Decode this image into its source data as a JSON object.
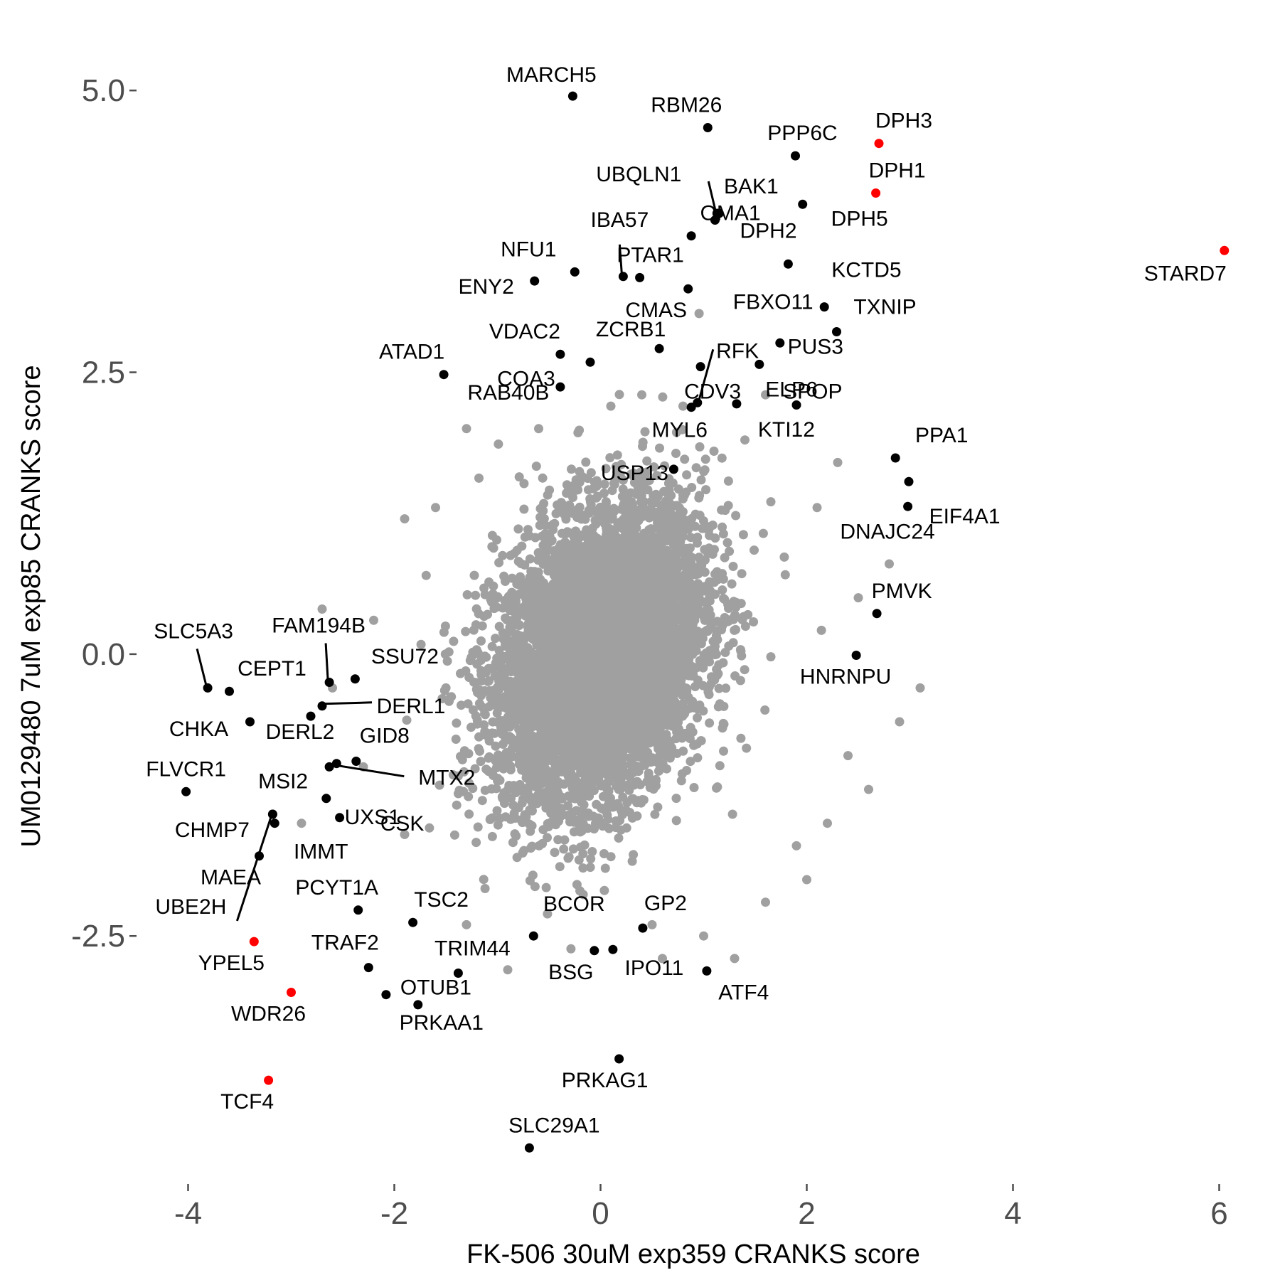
{
  "chart_data": {
    "type": "scatter",
    "xlabel": "FK-506 30uM exp359 CRANKS score",
    "ylabel": "UM0129480 7uM exp85 CRANKS score",
    "xlim": [
      -4.5,
      6.3
    ],
    "ylim": [
      -4.7,
      5.55
    ],
    "x_ticks": [
      -4,
      -2,
      0,
      2,
      4,
      6
    ],
    "x_tick_labels": [
      "-4",
      "-2",
      "0",
      "2",
      "4",
      "6"
    ],
    "y_ticks": [
      -2.5,
      0.0,
      2.5,
      5.0
    ],
    "y_tick_labels": [
      "-2.5",
      "0.0",
      "2.5",
      "5.0"
    ],
    "grid": false,
    "legend": "none",
    "colors": {
      "background_points": "#a0a0a0",
      "highlighted_points": "#000000",
      "red_points": "#ff0000",
      "ticks": "#4d4d4d"
    },
    "background_cloud": {
      "n": 6500,
      "center": [
        0.0,
        0.0
      ],
      "sd": [
        0.5,
        0.65
      ],
      "correlation": 0.28,
      "outlier_points": [
        [
          1.1,
          1.8
        ],
        [
          1.4,
          1.9
        ],
        [
          2.3,
          1.7
        ],
        [
          2.1,
          1.3
        ],
        [
          2.8,
          0.8
        ],
        [
          2.5,
          0.5
        ],
        [
          3.1,
          -0.3
        ],
        [
          2.4,
          -0.9
        ],
        [
          2.2,
          -1.5
        ],
        [
          1.9,
          -1.7
        ],
        [
          2.0,
          -2.0
        ],
        [
          1.6,
          -2.2
        ],
        [
          1.0,
          -2.5
        ],
        [
          0.5,
          -2.4
        ],
        [
          -0.9,
          -2.8
        ],
        [
          -1.3,
          -2.4
        ],
        [
          -1.9,
          -1.6
        ],
        [
          -2.3,
          -1.0
        ],
        [
          -2.6,
          -0.3
        ],
        [
          -2.7,
          0.4
        ],
        [
          -2.2,
          0.3
        ],
        [
          -1.9,
          1.2
        ],
        [
          -1.6,
          1.3
        ],
        [
          -1.3,
          2.0
        ],
        [
          -0.6,
          2.0
        ],
        [
          0.1,
          2.2
        ],
        [
          0.4,
          2.3
        ],
        [
          0.8,
          2.2
        ],
        [
          1.6,
          2.3
        ],
        [
          -2.9,
          -1.5
        ],
        [
          0.6,
          -2.7
        ],
        [
          1.3,
          -2.7
        ],
        [
          2.6,
          -1.2
        ],
        [
          2.9,
          -0.6
        ],
        [
          -0.2,
          -2.1
        ]
      ]
    },
    "labeled_points": [
      {
        "label": "MARCH5",
        "x": -0.27,
        "y": 4.95,
        "color": "black"
      },
      {
        "label": "RBM26",
        "x": 1.04,
        "y": 4.67,
        "color": "black"
      },
      {
        "label": "PPP6C",
        "x": 1.89,
        "y": 4.42,
        "color": "black"
      },
      {
        "label": "DPH3",
        "x": 2.7,
        "y": 4.53,
        "color": "red"
      },
      {
        "label": "DPH1",
        "x": 2.67,
        "y": 4.09,
        "color": "red"
      },
      {
        "label": "UBQLN1",
        "x": 1.13,
        "y": 3.91,
        "color": "black"
      },
      {
        "label": "BAK1",
        "x": 1.15,
        "y": 3.91,
        "color": "black"
      },
      {
        "label": "DPH2",
        "x": 1.11,
        "y": 3.85,
        "color": "black"
      },
      {
        "label": "DPH5",
        "x": 1.96,
        "y": 3.99,
        "color": "black"
      },
      {
        "label": "IBA57",
        "x": 0.22,
        "y": 3.35,
        "color": "black"
      },
      {
        "label": "NFU1",
        "x": -0.25,
        "y": 3.39,
        "color": "black"
      },
      {
        "label": "PTAR1",
        "x": 0.38,
        "y": 3.34,
        "color": "black"
      },
      {
        "label": "OMA1",
        "x": 0.88,
        "y": 3.71,
        "color": "black"
      },
      {
        "label": "KCTD5",
        "x": 1.82,
        "y": 3.46,
        "color": "black"
      },
      {
        "label": "STARD7",
        "x": 6.05,
        "y": 3.58,
        "color": "red"
      },
      {
        "label": "ENY2",
        "x": -0.64,
        "y": 3.31,
        "color": "black"
      },
      {
        "label": "CMAS",
        "x": 0.85,
        "y": 3.24,
        "color": "black"
      },
      {
        "label": "FBXO11",
        "x": 2.17,
        "y": 3.08,
        "color": "black"
      },
      {
        "label": "TXNIP",
        "x": 2.29,
        "y": 2.86,
        "color": "black"
      },
      {
        "label": "VDAC2",
        "x": -0.39,
        "y": 2.66,
        "color": "black"
      },
      {
        "label": "ZCRB1",
        "x": 0.57,
        "y": 2.71,
        "color": "black"
      },
      {
        "label": "RFK",
        "x": 0.97,
        "y": 2.55,
        "color": "black"
      },
      {
        "label": "PUS3",
        "x": 1.74,
        "y": 2.76,
        "color": "black"
      },
      {
        "label": "ATAD1",
        "x": -1.52,
        "y": 2.48,
        "color": "black"
      },
      {
        "label": "COA3",
        "x": -0.1,
        "y": 2.59,
        "color": "black"
      },
      {
        "label": "CDV3",
        "x": 0.88,
        "y": 2.19,
        "color": "black"
      },
      {
        "label": "ELP6",
        "x": 1.9,
        "y": 2.21,
        "color": "black"
      },
      {
        "label": "RAB40B",
        "x": -0.39,
        "y": 2.37,
        "color": "black"
      },
      {
        "label": "MYL6",
        "x": 0.94,
        "y": 2.23,
        "color": "black"
      },
      {
        "label": "KTI12",
        "x": 1.32,
        "y": 2.22,
        "color": "black"
      },
      {
        "label": "SPOP",
        "x": 1.54,
        "y": 2.57,
        "color": "black"
      },
      {
        "label": "PPA1",
        "x": 2.86,
        "y": 1.74,
        "color": "black"
      },
      {
        "label": "USP13",
        "x": 0.71,
        "y": 1.64,
        "color": "black"
      },
      {
        "label": "EIF4A1",
        "x": 2.98,
        "y": 1.31,
        "color": "black"
      },
      {
        "label": "DNAJC24",
        "x": 2.99,
        "y": 1.53,
        "color": "black"
      },
      {
        "label": "PMVK",
        "x": 2.68,
        "y": 0.36,
        "color": "black"
      },
      {
        "label": "HNRNPU",
        "x": 2.48,
        "y": -0.01,
        "color": "black"
      },
      {
        "label": "SLC5A3",
        "x": -3.81,
        "y": -0.3,
        "color": "black"
      },
      {
        "label": "FAM194B",
        "x": -2.63,
        "y": -0.25,
        "color": "black"
      },
      {
        "label": "CEPT1",
        "x": -3.6,
        "y": -0.33,
        "color": "black"
      },
      {
        "label": "SSU72",
        "x": -2.38,
        "y": -0.22,
        "color": "black"
      },
      {
        "label": "DERL1",
        "x": -2.7,
        "y": -0.46,
        "color": "black"
      },
      {
        "label": "CHKA",
        "x": -3.4,
        "y": -0.6,
        "color": "black"
      },
      {
        "label": "DERL2",
        "x": -2.81,
        "y": -0.55,
        "color": "black"
      },
      {
        "label": "GID8",
        "x": -2.37,
        "y": -0.95,
        "color": "black"
      },
      {
        "label": "MTX2",
        "x": -2.56,
        "y": -0.97,
        "color": "black"
      },
      {
        "label": "FLVCR1",
        "x": -4.02,
        "y": -1.22,
        "color": "black"
      },
      {
        "label": "MSI2",
        "x": -2.63,
        "y": -1.0,
        "color": "black"
      },
      {
        "label": "UXS1",
        "x": -2.66,
        "y": -1.28,
        "color": "black"
      },
      {
        "label": "CSK",
        "x": -2.53,
        "y": -1.45,
        "color": "black"
      },
      {
        "label": "CHMP7",
        "x": -3.18,
        "y": -1.42,
        "color": "black"
      },
      {
        "label": "IMMT",
        "x": -3.16,
        "y": -1.5,
        "color": "black"
      },
      {
        "label": "MAEA",
        "x": -3.31,
        "y": -1.79,
        "color": "black"
      },
      {
        "label": "UBE2H",
        "x": -3.18,
        "y": -1.42,
        "color": "black"
      },
      {
        "label": "PCYT1A",
        "x": -2.35,
        "y": -2.27,
        "color": "black"
      },
      {
        "label": "TSC2",
        "x": -1.82,
        "y": -2.38,
        "color": "black"
      },
      {
        "label": "BCOR",
        "x": -0.65,
        "y": -2.5,
        "color": "black"
      },
      {
        "label": "GP2",
        "x": 0.41,
        "y": -2.43,
        "color": "black"
      },
      {
        "label": "YPEL5",
        "x": -3.36,
        "y": -2.55,
        "color": "red"
      },
      {
        "label": "TRAF2",
        "x": -2.25,
        "y": -2.78,
        "color": "black"
      },
      {
        "label": "TRIM44",
        "x": -1.38,
        "y": -2.83,
        "color": "black"
      },
      {
        "label": "BSG",
        "x": -0.06,
        "y": -2.63,
        "color": "black"
      },
      {
        "label": "IPO11",
        "x": 0.12,
        "y": -2.62,
        "color": "black"
      },
      {
        "label": "ATF4",
        "x": 1.03,
        "y": -2.81,
        "color": "black"
      },
      {
        "label": "OTUB1",
        "x": -2.08,
        "y": -3.02,
        "color": "black"
      },
      {
        "label": "PRKAA1",
        "x": -1.77,
        "y": -3.11,
        "color": "black"
      },
      {
        "label": "WDR26",
        "x": -3.0,
        "y": -3.0,
        "color": "red"
      },
      {
        "label": "PRKAG1",
        "x": 0.18,
        "y": -3.59,
        "color": "black"
      },
      {
        "label": "TCF4",
        "x": -3.22,
        "y": -3.78,
        "color": "red"
      },
      {
        "label": "SLC29A1",
        "x": -0.69,
        "y": -4.38,
        "color": "black"
      }
    ]
  }
}
